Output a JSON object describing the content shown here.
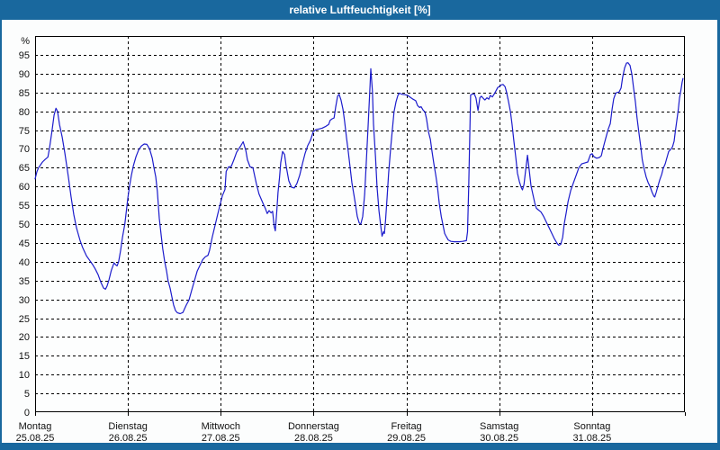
{
  "window": {
    "title": "relative Luftfeuchtigkeit [%]"
  },
  "chart_data": {
    "type": "line",
    "title": "relative Luftfeuchtigkeit [%]",
    "y_unit": "%",
    "ymax": 100,
    "ytick_step": 5,
    "yticks": [
      0,
      5,
      10,
      15,
      20,
      25,
      30,
      35,
      40,
      45,
      50,
      55,
      60,
      65,
      70,
      75,
      80,
      85,
      90,
      95
    ],
    "x_total_hours": 168,
    "grid": "dashed",
    "legend": "none",
    "days": [
      {
        "name": "Montag",
        "date": "25.08.25"
      },
      {
        "name": "Dienstag",
        "date": "26.08.25"
      },
      {
        "name": "Mittwoch",
        "date": "27.08.25"
      },
      {
        "name": "Donnerstag",
        "date": "28.08.25"
      },
      {
        "name": "Freitag",
        "date": "29.08.25"
      },
      {
        "name": "Samstag",
        "date": "30.08.25"
      },
      {
        "name": "Sonntag",
        "date": "31.08.25"
      }
    ],
    "colors": {
      "titlebar_bg": "#19689e",
      "titlebar_text": "#ffffff",
      "frame": "#19689e",
      "line": "#1c1ccc",
      "grid": "#000000",
      "border": "#000000",
      "text": "#111111",
      "plot_bg": "#fdfefe"
    },
    "points": [
      [
        0,
        62
      ],
      [
        0.5,
        64
      ],
      [
        0.9,
        65
      ],
      [
        1.9,
        66.5
      ],
      [
        2.6,
        67.2
      ],
      [
        3.3,
        67.8
      ],
      [
        3.7,
        70
      ],
      [
        4.4,
        75
      ],
      [
        4.9,
        79
      ],
      [
        5.4,
        80.8
      ],
      [
        5.8,
        80
      ],
      [
        6.3,
        76.5
      ],
      [
        7,
        73.1
      ],
      [
        7.7,
        68.8
      ],
      [
        8.6,
        62.5
      ],
      [
        9.3,
        57.2
      ],
      [
        10,
        52.5
      ],
      [
        10.7,
        49
      ],
      [
        11.6,
        45.7
      ],
      [
        12.3,
        43.7
      ],
      [
        13.3,
        41.5
      ],
      [
        14,
        40.5
      ],
      [
        14.9,
        39.2
      ],
      [
        15.6,
        38
      ],
      [
        16.3,
        36.5
      ],
      [
        17,
        34.5
      ],
      [
        17.7,
        33
      ],
      [
        18.2,
        32.7
      ],
      [
        18.6,
        33.5
      ],
      [
        19.1,
        35.2
      ],
      [
        19.7,
        37.7
      ],
      [
        20.4,
        39.7
      ],
      [
        20.8,
        39.2
      ],
      [
        21.2,
        38.9
      ],
      [
        21.6,
        40
      ],
      [
        22.1,
        43
      ],
      [
        22.6,
        46.5
      ],
      [
        23.2,
        50
      ],
      [
        23.6,
        53.5
      ],
      [
        24,
        57
      ],
      [
        24.4,
        60
      ],
      [
        24.9,
        63
      ],
      [
        25.4,
        65.5
      ],
      [
        26.1,
        68
      ],
      [
        26.8,
        69.8
      ],
      [
        27.5,
        70.8
      ],
      [
        28.2,
        71.3
      ],
      [
        28.9,
        71.2
      ],
      [
        29.6,
        70
      ],
      [
        30.3,
        67.5
      ],
      [
        30.7,
        65.2
      ],
      [
        31.2,
        62.5
      ],
      [
        31.6,
        58.8
      ],
      [
        32.1,
        51.5
      ],
      [
        32.6,
        47
      ],
      [
        33,
        43.5
      ],
      [
        33.5,
        40
      ],
      [
        34,
        37.5
      ],
      [
        34.4,
        34.9
      ],
      [
        34.9,
        33
      ],
      [
        35.4,
        30.5
      ],
      [
        35.8,
        28.5
      ],
      [
        36.3,
        27
      ],
      [
        36.8,
        26.4
      ],
      [
        37.5,
        26.2
      ],
      [
        38.2,
        26.5
      ],
      [
        39.1,
        28.5
      ],
      [
        39.8,
        29.8
      ],
      [
        40.5,
        32.5
      ],
      [
        41.2,
        35
      ],
      [
        41.9,
        37.5
      ],
      [
        42.6,
        39
      ],
      [
        43.3,
        40.5
      ],
      [
        44,
        41.3
      ],
      [
        44.7,
        41.7
      ],
      [
        45.1,
        43
      ],
      [
        45.8,
        46.5
      ],
      [
        46.5,
        49.5
      ],
      [
        47.2,
        52.5
      ],
      [
        47.9,
        55.5
      ],
      [
        48.4,
        57.5
      ],
      [
        49.1,
        59.2
      ],
      [
        49.4,
        64
      ],
      [
        50,
        65.2
      ],
      [
        50.7,
        65.3
      ],
      [
        51.4,
        67.1
      ],
      [
        52.1,
        69.1
      ],
      [
        53.1,
        70.7
      ],
      [
        53.8,
        71.9
      ],
      [
        54.5,
        69.5
      ],
      [
        54.9,
        67.1
      ],
      [
        55.6,
        65.2
      ],
      [
        56.3,
        65
      ],
      [
        57.2,
        60.8
      ],
      [
        57.9,
        58
      ],
      [
        58.9,
        55.6
      ],
      [
        59.6,
        54
      ],
      [
        60,
        52.8
      ],
      [
        60.5,
        53.6
      ],
      [
        61,
        53
      ],
      [
        61.4,
        53.4
      ],
      [
        61.8,
        49.5
      ],
      [
        62.1,
        48.2
      ],
      [
        62.5,
        53.6
      ],
      [
        62.8,
        58.4
      ],
      [
        63.2,
        62.4
      ],
      [
        63.5,
        66.3
      ],
      [
        64,
        69.3
      ],
      [
        64.5,
        68.5
      ],
      [
        64.9,
        65.5
      ],
      [
        65.6,
        61.5
      ],
      [
        66.3,
        59.8
      ],
      [
        67,
        59.6
      ],
      [
        67.7,
        60.8
      ],
      [
        68.4,
        63
      ],
      [
        69.1,
        66
      ],
      [
        69.8,
        68.8
      ],
      [
        70.5,
        70.9
      ],
      [
        71.2,
        72.3
      ],
      [
        71.9,
        74.5
      ],
      [
        72.6,
        75.1
      ],
      [
        73.5,
        75.3
      ],
      [
        74.2,
        75.5
      ],
      [
        75.2,
        76
      ],
      [
        75.9,
        76.5
      ],
      [
        76.3,
        77.6
      ],
      [
        76.8,
        78
      ],
      [
        77.3,
        78.2
      ],
      [
        77.7,
        81
      ],
      [
        78.2,
        84
      ],
      [
        78.6,
        84.5
      ],
      [
        79.1,
        83
      ],
      [
        79.6,
        80.5
      ],
      [
        80,
        77.5
      ],
      [
        80.5,
        73
      ],
      [
        81,
        69
      ],
      [
        81.4,
        65.5
      ],
      [
        81.9,
        61
      ],
      [
        82.4,
        58
      ],
      [
        82.8,
        55.5
      ],
      [
        83.3,
        52
      ],
      [
        83.8,
        50.3
      ],
      [
        84.2,
        50
      ],
      [
        84.7,
        52
      ],
      [
        85.2,
        58
      ],
      [
        85.6,
        66
      ],
      [
        86.1,
        76
      ],
      [
        86.6,
        87
      ],
      [
        86.8,
        91.3
      ],
      [
        87.2,
        85.4
      ],
      [
        87.5,
        76.6
      ],
      [
        88,
        68
      ],
      [
        88.4,
        60
      ],
      [
        88.9,
        53.5
      ],
      [
        89.4,
        49.2
      ],
      [
        89.7,
        46.8
      ],
      [
        90.1,
        48
      ],
      [
        90.3,
        47.5
      ],
      [
        90.6,
        51
      ],
      [
        91,
        57
      ],
      [
        91.4,
        63.5
      ],
      [
        91.9,
        70
      ],
      [
        92.4,
        75.5
      ],
      [
        92.8,
        79.8
      ],
      [
        93.3,
        82.5
      ],
      [
        93.8,
        84.2
      ],
      [
        94.2,
        84.8
      ],
      [
        94.9,
        84.5
      ],
      [
        95.6,
        84.4
      ],
      [
        96.3,
        84.2
      ],
      [
        97,
        83.7
      ],
      [
        97.7,
        83.2
      ],
      [
        98.4,
        82.8
      ],
      [
        98.9,
        81.5
      ],
      [
        99.4,
        81
      ],
      [
        99.8,
        81.2
      ],
      [
        100.3,
        80.3
      ],
      [
        100.8,
        79.8
      ],
      [
        101.2,
        78
      ],
      [
        101.7,
        74.5
      ],
      [
        102.2,
        72.5
      ],
      [
        102.6,
        69.5
      ],
      [
        103.1,
        66
      ],
      [
        103.6,
        63
      ],
      [
        104,
        60
      ],
      [
        104.5,
        55.5
      ],
      [
        105,
        52
      ],
      [
        105.4,
        50
      ],
      [
        105.9,
        47.5
      ],
      [
        106.4,
        46.5
      ],
      [
        106.8,
        45.8
      ],
      [
        107.5,
        45.4
      ],
      [
        108.4,
        45.3
      ],
      [
        109.6,
        45.3
      ],
      [
        110.5,
        45.4
      ],
      [
        111.5,
        45.6
      ],
      [
        111.8,
        48
      ],
      [
        112.1,
        60
      ],
      [
        112.4,
        75
      ],
      [
        112.6,
        84.3
      ],
      [
        113.1,
        84.6
      ],
      [
        113.6,
        84.5
      ],
      [
        114,
        83.5
      ],
      [
        114.5,
        80.2
      ],
      [
        115,
        83.6
      ],
      [
        115.4,
        84
      ],
      [
        115.9,
        83.4
      ],
      [
        116.3,
        83
      ],
      [
        116.8,
        83.6
      ],
      [
        117.3,
        83.2
      ],
      [
        117.7,
        84.2
      ],
      [
        118.2,
        83.8
      ],
      [
        118.6,
        84.4
      ],
      [
        119.1,
        85.3
      ],
      [
        119.6,
        86.3
      ],
      [
        120.1,
        86.6
      ],
      [
        120.5,
        87
      ],
      [
        121,
        87.1
      ],
      [
        121.5,
        86.5
      ],
      [
        121.9,
        85
      ],
      [
        122.4,
        82.6
      ],
      [
        122.9,
        79.8
      ],
      [
        123.3,
        76.6
      ],
      [
        123.8,
        72
      ],
      [
        124.3,
        67.5
      ],
      [
        124.7,
        63.6
      ],
      [
        125.2,
        61.3
      ],
      [
        125.7,
        59.7
      ],
      [
        126,
        59.1
      ],
      [
        126.4,
        60.5
      ],
      [
        126.8,
        64
      ],
      [
        127.3,
        68.3
      ],
      [
        127.8,
        64
      ],
      [
        128.2,
        60.2
      ],
      [
        128.7,
        57.9
      ],
      [
        129.2,
        55.5
      ],
      [
        129.6,
        54.2
      ],
      [
        130.1,
        53.8
      ],
      [
        130.8,
        53.2
      ],
      [
        131.5,
        52
      ],
      [
        132.2,
        50.5
      ],
      [
        132.9,
        49
      ],
      [
        133.6,
        47.5
      ],
      [
        134.3,
        46
      ],
      [
        135,
        44.8
      ],
      [
        135.4,
        44.4
      ],
      [
        135.9,
        44.6
      ],
      [
        136.4,
        46.5
      ],
      [
        136.8,
        50
      ],
      [
        137.3,
        53
      ],
      [
        137.8,
        56
      ],
      [
        138.5,
        59
      ],
      [
        139.2,
        61
      ],
      [
        139.9,
        63
      ],
      [
        140.6,
        65
      ],
      [
        141.3,
        66
      ],
      [
        142.2,
        66.3
      ],
      [
        142.9,
        66.5
      ],
      [
        143.6,
        68.5
      ],
      [
        144,
        68.7
      ],
      [
        144.5,
        67.9
      ],
      [
        145.2,
        67.5
      ],
      [
        145.9,
        67.7
      ],
      [
        146.4,
        68.2
      ],
      [
        146.8,
        70
      ],
      [
        147.3,
        71.9
      ],
      [
        147.7,
        73.5
      ],
      [
        148.2,
        75.3
      ],
      [
        148.7,
        76.7
      ],
      [
        149.2,
        80.7
      ],
      [
        149.6,
        83.3
      ],
      [
        150.1,
        84.8
      ],
      [
        150.5,
        85
      ],
      [
        151,
        85.1
      ],
      [
        151.5,
        86.2
      ],
      [
        151.9,
        89
      ],
      [
        152.4,
        91.5
      ],
      [
        152.9,
        92.8
      ],
      [
        153.3,
        92.9
      ],
      [
        153.8,
        92.2
      ],
      [
        154.3,
        89.8
      ],
      [
        154.7,
        86.5
      ],
      [
        155.2,
        82.5
      ],
      [
        155.6,
        78.5
      ],
      [
        156.1,
        74.3
      ],
      [
        156.6,
        70.5
      ],
      [
        157,
        67
      ],
      [
        157.5,
        64.5
      ],
      [
        158,
        62.5
      ],
      [
        158.5,
        61
      ],
      [
        159,
        60
      ],
      [
        159.5,
        58.5
      ],
      [
        160,
        57.4
      ],
      [
        160.2,
        57.2
      ],
      [
        160.6,
        58.5
      ],
      [
        161.1,
        60.3
      ],
      [
        161.5,
        61.8
      ],
      [
        162,
        63.2
      ],
      [
        162.4,
        64.8
      ],
      [
        162.9,
        66
      ],
      [
        163.4,
        67.8
      ],
      [
        163.8,
        69.3
      ],
      [
        164.3,
        69.8
      ],
      [
        164.8,
        70.5
      ],
      [
        165.2,
        72
      ],
      [
        165.5,
        74.5
      ],
      [
        165.9,
        77.5
      ],
      [
        166.3,
        80.5
      ],
      [
        166.6,
        83.5
      ],
      [
        167,
        85.8
      ],
      [
        167.3,
        87.8
      ],
      [
        167.5,
        88.7
      ]
    ]
  }
}
